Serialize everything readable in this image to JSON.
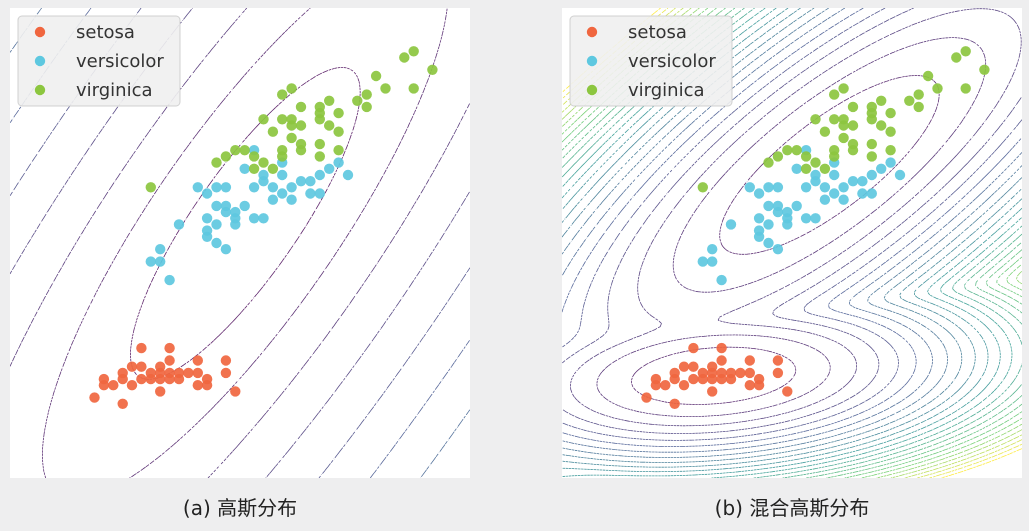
{
  "chart_data": [
    {
      "type": "scatter",
      "caption": "(a) 高斯分布",
      "legend": {
        "placement": "top-left",
        "entries": [
          "setosa",
          "versicolor",
          "virginica"
        ]
      },
      "contours": "single gaussian density contours",
      "series": [
        {
          "name": "setosa",
          "color": "#f0663f",
          "points": [
            [
              4.3,
              1.1
            ],
            [
              4.4,
              1.3
            ],
            [
              4.4,
              1.4
            ],
            [
              4.5,
              1.3
            ],
            [
              4.6,
              1.0
            ],
            [
              4.6,
              1.4
            ],
            [
              4.6,
              1.5
            ],
            [
              4.7,
              1.3
            ],
            [
              4.7,
              1.6
            ],
            [
              4.8,
              1.4
            ],
            [
              4.8,
              1.6
            ],
            [
              4.8,
              1.9
            ],
            [
              4.9,
              1.4
            ],
            [
              4.9,
              1.5
            ],
            [
              5.0,
              1.2
            ],
            [
              5.0,
              1.4
            ],
            [
              5.0,
              1.5
            ],
            [
              5.0,
              1.6
            ],
            [
              5.1,
              1.4
            ],
            [
              5.1,
              1.5
            ],
            [
              5.1,
              1.7
            ],
            [
              5.1,
              1.9
            ],
            [
              5.2,
              1.4
            ],
            [
              5.2,
              1.5
            ],
            [
              5.3,
              1.5
            ],
            [
              5.4,
              1.3
            ],
            [
              5.4,
              1.5
            ],
            [
              5.4,
              1.7
            ],
            [
              5.5,
              1.3
            ],
            [
              5.5,
              1.4
            ],
            [
              5.7,
              1.5
            ],
            [
              5.7,
              1.7
            ],
            [
              5.8,
              1.2
            ]
          ]
        },
        {
          "name": "versicolor",
          "color": "#5ec8e0",
          "points": [
            [
              4.9,
              3.3
            ],
            [
              5.0,
              3.3
            ],
            [
              5.0,
              3.5
            ],
            [
              5.1,
              3.0
            ],
            [
              5.2,
              3.9
            ],
            [
              5.4,
              4.5
            ],
            [
              5.5,
              3.7
            ],
            [
              5.5,
              3.8
            ],
            [
              5.5,
              4.0
            ],
            [
              5.5,
              4.4
            ],
            [
              5.6,
              3.6
            ],
            [
              5.6,
              3.9
            ],
            [
              5.6,
              4.2
            ],
            [
              5.6,
              4.5
            ],
            [
              5.7,
              3.5
            ],
            [
              5.7,
              4.1
            ],
            [
              5.7,
              4.2
            ],
            [
              5.7,
              4.5
            ],
            [
              5.8,
              3.9
            ],
            [
              5.8,
              4.0
            ],
            [
              5.8,
              4.1
            ],
            [
              5.9,
              4.2
            ],
            [
              5.9,
              4.8
            ],
            [
              6.0,
              4.0
            ],
            [
              6.0,
              4.5
            ],
            [
              6.0,
              5.1
            ],
            [
              6.1,
              4.0
            ],
            [
              6.1,
              4.6
            ],
            [
              6.1,
              4.7
            ],
            [
              6.2,
              4.3
            ],
            [
              6.2,
              4.5
            ],
            [
              6.3,
              4.4
            ],
            [
              6.3,
              4.7
            ],
            [
              6.3,
              4.9
            ],
            [
              6.4,
              4.3
            ],
            [
              6.4,
              4.5
            ],
            [
              6.5,
              4.6
            ],
            [
              6.6,
              4.4
            ],
            [
              6.6,
              4.6
            ],
            [
              6.7,
              4.4
            ],
            [
              6.7,
              4.7
            ],
            [
              6.8,
              4.8
            ],
            [
              6.9,
              4.9
            ],
            [
              7.0,
              4.7
            ]
          ]
        },
        {
          "name": "virginica",
          "color": "#8cc63f",
          "points": [
            [
              4.9,
              4.5
            ],
            [
              5.6,
              4.9
            ],
            [
              5.7,
              5.0
            ],
            [
              5.8,
              5.1
            ],
            [
              5.9,
              5.1
            ],
            [
              6.0,
              4.8
            ],
            [
              6.0,
              5.0
            ],
            [
              6.1,
              4.9
            ],
            [
              6.1,
              5.6
            ],
            [
              6.2,
              4.8
            ],
            [
              6.2,
              5.4
            ],
            [
              6.3,
              5.0
            ],
            [
              6.3,
              5.1
            ],
            [
              6.3,
              5.6
            ],
            [
              6.3,
              6.0
            ],
            [
              6.4,
              5.3
            ],
            [
              6.4,
              5.5
            ],
            [
              6.4,
              5.6
            ],
            [
              6.4,
              6.1
            ],
            [
              6.5,
              5.1
            ],
            [
              6.5,
              5.2
            ],
            [
              6.5,
              5.5
            ],
            [
              6.5,
              5.8
            ],
            [
              6.7,
              5.0
            ],
            [
              6.7,
              5.2
            ],
            [
              6.7,
              5.6
            ],
            [
              6.7,
              5.7
            ],
            [
              6.7,
              5.8
            ],
            [
              6.8,
              5.5
            ],
            [
              6.8,
              5.9
            ],
            [
              6.9,
              5.1
            ],
            [
              6.9,
              5.4
            ],
            [
              6.9,
              5.7
            ],
            [
              7.1,
              5.9
            ],
            [
              7.2,
              5.8
            ],
            [
              7.2,
              6.0
            ],
            [
              7.3,
              6.3
            ],
            [
              7.4,
              6.1
            ],
            [
              7.6,
              6.6
            ],
            [
              7.7,
              6.1
            ],
            [
              7.7,
              6.7
            ],
            [
              7.9,
              6.4
            ]
          ]
        }
      ]
    },
    {
      "type": "scatter",
      "caption": "(b) 混合高斯分布",
      "legend": {
        "placement": "top-left",
        "entries": [
          "setosa",
          "versicolor",
          "virginica"
        ]
      },
      "contours": "gaussian mixture density contours",
      "series": [
        {
          "name": "setosa",
          "color": "#f0663f",
          "points": [
            [
              4.3,
              1.1
            ],
            [
              4.4,
              1.3
            ],
            [
              4.4,
              1.4
            ],
            [
              4.5,
              1.3
            ],
            [
              4.6,
              1.0
            ],
            [
              4.6,
              1.4
            ],
            [
              4.6,
              1.5
            ],
            [
              4.7,
              1.3
            ],
            [
              4.7,
              1.6
            ],
            [
              4.8,
              1.4
            ],
            [
              4.8,
              1.6
            ],
            [
              4.8,
              1.9
            ],
            [
              4.9,
              1.4
            ],
            [
              4.9,
              1.5
            ],
            [
              5.0,
              1.2
            ],
            [
              5.0,
              1.4
            ],
            [
              5.0,
              1.5
            ],
            [
              5.0,
              1.6
            ],
            [
              5.1,
              1.4
            ],
            [
              5.1,
              1.5
            ],
            [
              5.1,
              1.7
            ],
            [
              5.1,
              1.9
            ],
            [
              5.2,
              1.4
            ],
            [
              5.2,
              1.5
            ],
            [
              5.3,
              1.5
            ],
            [
              5.4,
              1.3
            ],
            [
              5.4,
              1.5
            ],
            [
              5.4,
              1.7
            ],
            [
              5.5,
              1.3
            ],
            [
              5.5,
              1.4
            ],
            [
              5.7,
              1.5
            ],
            [
              5.7,
              1.7
            ],
            [
              5.8,
              1.2
            ]
          ]
        },
        {
          "name": "versicolor",
          "color": "#5ec8e0",
          "points": [
            [
              4.9,
              3.3
            ],
            [
              5.0,
              3.3
            ],
            [
              5.0,
              3.5
            ],
            [
              5.1,
              3.0
            ],
            [
              5.2,
              3.9
            ],
            [
              5.4,
              4.5
            ],
            [
              5.5,
              3.7
            ],
            [
              5.5,
              3.8
            ],
            [
              5.5,
              4.0
            ],
            [
              5.5,
              4.4
            ],
            [
              5.6,
              3.6
            ],
            [
              5.6,
              3.9
            ],
            [
              5.6,
              4.2
            ],
            [
              5.6,
              4.5
            ],
            [
              5.7,
              3.5
            ],
            [
              5.7,
              4.1
            ],
            [
              5.7,
              4.2
            ],
            [
              5.7,
              4.5
            ],
            [
              5.8,
              3.9
            ],
            [
              5.8,
              4.0
            ],
            [
              5.8,
              4.1
            ],
            [
              5.9,
              4.2
            ],
            [
              5.9,
              4.8
            ],
            [
              6.0,
              4.0
            ],
            [
              6.0,
              4.5
            ],
            [
              6.0,
              5.1
            ],
            [
              6.1,
              4.0
            ],
            [
              6.1,
              4.6
            ],
            [
              6.1,
              4.7
            ],
            [
              6.2,
              4.3
            ],
            [
              6.2,
              4.5
            ],
            [
              6.3,
              4.4
            ],
            [
              6.3,
              4.7
            ],
            [
              6.3,
              4.9
            ],
            [
              6.4,
              4.3
            ],
            [
              6.4,
              4.5
            ],
            [
              6.5,
              4.6
            ],
            [
              6.6,
              4.4
            ],
            [
              6.6,
              4.6
            ],
            [
              6.7,
              4.4
            ],
            [
              6.7,
              4.7
            ],
            [
              6.8,
              4.8
            ],
            [
              6.9,
              4.9
            ],
            [
              7.0,
              4.7
            ]
          ]
        },
        {
          "name": "virginica",
          "color": "#8cc63f",
          "points": [
            [
              4.9,
              4.5
            ],
            [
              5.6,
              4.9
            ],
            [
              5.7,
              5.0
            ],
            [
              5.8,
              5.1
            ],
            [
              5.9,
              5.1
            ],
            [
              6.0,
              4.8
            ],
            [
              6.0,
              5.0
            ],
            [
              6.1,
              4.9
            ],
            [
              6.1,
              5.6
            ],
            [
              6.2,
              4.8
            ],
            [
              6.2,
              5.4
            ],
            [
              6.3,
              5.0
            ],
            [
              6.3,
              5.1
            ],
            [
              6.3,
              5.6
            ],
            [
              6.3,
              6.0
            ],
            [
              6.4,
              5.3
            ],
            [
              6.4,
              5.5
            ],
            [
              6.4,
              5.6
            ],
            [
              6.4,
              6.1
            ],
            [
              6.5,
              5.1
            ],
            [
              6.5,
              5.2
            ],
            [
              6.5,
              5.5
            ],
            [
              6.5,
              5.8
            ],
            [
              6.7,
              5.0
            ],
            [
              6.7,
              5.2
            ],
            [
              6.7,
              5.6
            ],
            [
              6.7,
              5.7
            ],
            [
              6.7,
              5.8
            ],
            [
              6.8,
              5.5
            ],
            [
              6.8,
              5.9
            ],
            [
              6.9,
              5.1
            ],
            [
              6.9,
              5.4
            ],
            [
              6.9,
              5.7
            ],
            [
              7.1,
              5.9
            ],
            [
              7.2,
              5.8
            ],
            [
              7.2,
              6.0
            ],
            [
              7.3,
              6.3
            ],
            [
              7.4,
              6.1
            ],
            [
              7.6,
              6.6
            ],
            [
              7.7,
              6.1
            ],
            [
              7.7,
              6.7
            ],
            [
              7.9,
              6.4
            ]
          ]
        }
      ]
    }
  ]
}
